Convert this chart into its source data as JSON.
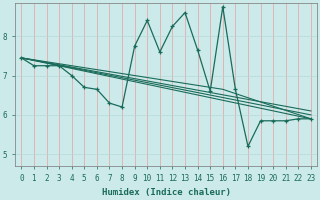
{
  "xlabel": "Humidex (Indice chaleur)",
  "background_color": "#cceaea",
  "grid_color_v": "#e8a0a0",
  "grid_color_h": "#b8d8d8",
  "line_color": "#1a6b5a",
  "xlim": [
    -0.5,
    23.5
  ],
  "ylim": [
    4.7,
    8.85
  ],
  "yticks": [
    5,
    6,
    7,
    8
  ],
  "xticks": [
    0,
    1,
    2,
    3,
    4,
    5,
    6,
    7,
    8,
    9,
    10,
    11,
    12,
    13,
    14,
    15,
    16,
    17,
    18,
    19,
    20,
    21,
    22,
    23
  ],
  "zigzag": {
    "x": [
      0,
      1,
      2,
      3,
      4,
      5,
      6,
      7,
      8,
      9,
      10,
      11,
      12,
      13,
      14,
      15,
      16,
      17,
      18,
      19,
      20,
      21,
      22,
      23
    ],
    "y": [
      7.45,
      7.25,
      7.25,
      7.25,
      7.0,
      6.7,
      6.65,
      6.3,
      6.2,
      7.75,
      8.4,
      7.6,
      8.25,
      8.6,
      7.65,
      6.6,
      8.75,
      6.65,
      5.2,
      5.85,
      5.85,
      5.85,
      5.9,
      5.9
    ]
  },
  "trend_lines": [
    {
      "x": [
        0,
        16,
        23
      ],
      "y": [
        7.45,
        6.65,
        5.9
      ]
    },
    {
      "x": [
        0,
        23
      ],
      "y": [
        7.45,
        5.9
      ]
    },
    {
      "x": [
        0,
        23
      ],
      "y": [
        7.45,
        6.0
      ]
    },
    {
      "x": [
        0,
        23
      ],
      "y": [
        7.45,
        6.1
      ]
    }
  ]
}
